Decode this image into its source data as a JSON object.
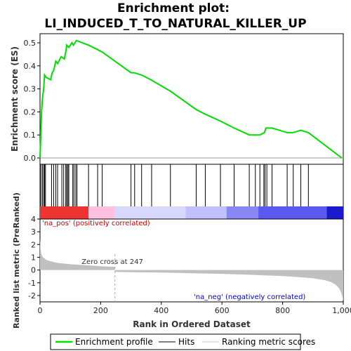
{
  "chart_data": {
    "type": "line",
    "title_lines": [
      "Enrichment plot:",
      "LI_INDUCED_T_TO_NATURAL_KILLER_UP"
    ],
    "es_panel": {
      "ylabel": "Enrichment score (ES)",
      "ylim": [
        0,
        0.55
      ],
      "yticks": [
        0.0,
        0.1,
        0.2,
        0.3,
        0.4,
        0.5
      ],
      "series_name": "Enrichment profile",
      "x": [
        0,
        5,
        8,
        12,
        15,
        20,
        35,
        40,
        45,
        52,
        58,
        70,
        80,
        85,
        88,
        95,
        105,
        110,
        115,
        120,
        160,
        190,
        205,
        300,
        310,
        335,
        365,
        430,
        515,
        545,
        595,
        640,
        690,
        710,
        725,
        740,
        745,
        765,
        815,
        835,
        860,
        885,
        995
      ],
      "y": [
        0.0,
        0.2,
        0.26,
        0.3,
        0.36,
        0.35,
        0.34,
        0.37,
        0.38,
        0.42,
        0.41,
        0.44,
        0.43,
        0.46,
        0.49,
        0.48,
        0.5,
        0.49,
        0.5,
        0.51,
        0.49,
        0.47,
        0.46,
        0.37,
        0.37,
        0.36,
        0.34,
        0.29,
        0.21,
        0.19,
        0.16,
        0.13,
        0.1,
        0.1,
        0.1,
        0.11,
        0.13,
        0.13,
        0.11,
        0.11,
        0.12,
        0.11,
        0.0
      ]
    },
    "hits": [
      3,
      8,
      12,
      15,
      18,
      38,
      45,
      52,
      58,
      72,
      78,
      85,
      88,
      92,
      95,
      108,
      112,
      118,
      122,
      160,
      190,
      205,
      300,
      312,
      335,
      368,
      430,
      515,
      545,
      595,
      640,
      690,
      710,
      725,
      738,
      742,
      748,
      765,
      815,
      835,
      860,
      885
    ],
    "heatmap_segments": [
      {
        "start": 0,
        "end": 160,
        "color": "#ee3333"
      },
      {
        "start": 160,
        "end": 247,
        "color": "#ffc0e0"
      },
      {
        "start": 247,
        "end": 480,
        "color": "#d8d8ff"
      },
      {
        "start": 480,
        "end": 615,
        "color": "#c0c0ff"
      },
      {
        "start": 615,
        "end": 720,
        "color": "#8888f4"
      },
      {
        "start": 720,
        "end": 945,
        "color": "#5a5af0"
      },
      {
        "start": 945,
        "end": 1000,
        "color": "#1a1acc"
      }
    ],
    "metric_panel": {
      "ylabel": "Ranked list metric (PreRanked)",
      "ylim": [
        -2.5,
        4
      ],
      "yticks": [
        -2,
        -1,
        0,
        1,
        2,
        3,
        4
      ],
      "x": [
        0,
        2,
        5,
        10,
        20,
        40,
        60,
        100,
        150,
        200,
        246,
        247,
        300,
        400,
        500,
        600,
        700,
        800,
        850,
        900,
        940,
        960,
        975,
        985,
        990,
        995,
        998,
        1000
      ],
      "y": [
        2.5,
        1.6,
        1.2,
        1.0,
        0.8,
        0.65,
        0.55,
        0.45,
        0.38,
        0.3,
        0.25,
        -0.15,
        -0.17,
        -0.2,
        -0.25,
        -0.3,
        -0.38,
        -0.48,
        -0.55,
        -0.65,
        -0.8,
        -0.95,
        -1.15,
        -1.4,
        -1.6,
        -1.9,
        -2.2,
        -2.4
      ]
    },
    "zero_cross": 247,
    "zero_cross_label": "Zero cross at 247",
    "pos_label": "'na_pos' (positively correlated)",
    "neg_label": "'na_neg' (negatively correlated)",
    "xlabel": "Rank in Ordered Dataset",
    "xlim": [
      0,
      1000
    ],
    "xticks": [
      0,
      200,
      400,
      600,
      800,
      1000
    ],
    "xtick_labels": [
      "0",
      "200",
      "400",
      "600",
      "800",
      "1,000"
    ],
    "legend": [
      {
        "label": "Enrichment profile",
        "color": "#00dd00"
      },
      {
        "label": "Hits",
        "color": "#000000"
      },
      {
        "label": "Ranking metric scores",
        "color": "#c8c8c8"
      }
    ],
    "colors": {
      "es_line": "#00dd00",
      "metric_fill": "#c0c0c0",
      "pos_text": "#cc0000",
      "neg_text": "#0000cc"
    }
  }
}
